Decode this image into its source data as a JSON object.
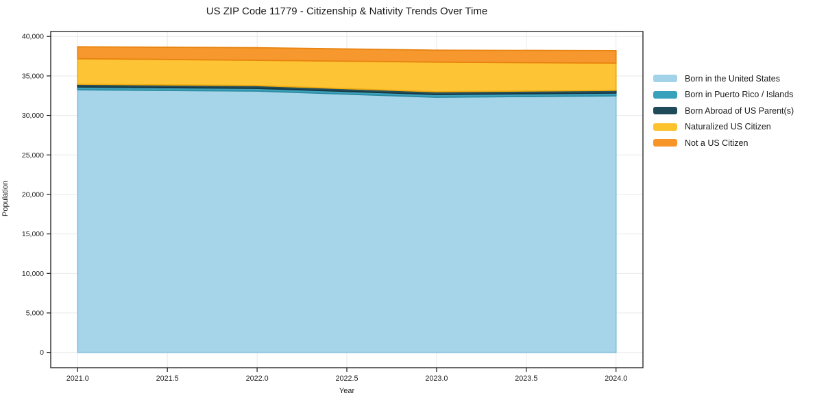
{
  "title": "US ZIP Code 11779 - Citizenship & Nativity Trends Over Time",
  "chart_data": {
    "type": "area",
    "stacked": true,
    "title": "US ZIP Code 11779 - Citizenship & Nativity Trends Over Time",
    "xlabel": "Year",
    "ylabel": "Population",
    "x": [
      2021,
      2022,
      2023,
      2024
    ],
    "series": [
      {
        "name": "Born in the United States",
        "color": "#a3d3e8",
        "edge_color": "#8ac2de",
        "values": [
          33250,
          33080,
          32300,
          32480
        ]
      },
      {
        "name": "Born in Puerto Rico / Islands",
        "color": "#38a1bb",
        "edge_color": "#2e8ba2",
        "values": [
          350,
          350,
          350,
          350
        ]
      },
      {
        "name": "Born Abroad of US Parent(s)",
        "color": "#1f4a59",
        "edge_color": "#163843",
        "values": [
          350,
          350,
          350,
          350
        ]
      },
      {
        "name": "Naturalized US Citizen",
        "color": "#fdc32f",
        "edge_color": "#f0ad10",
        "values": [
          3230,
          3200,
          3750,
          3440
        ]
      },
      {
        "name": "Not a US Citizen",
        "color": "#f79528",
        "edge_color": "#e8830f",
        "values": [
          1510,
          1590,
          1510,
          1590
        ]
      }
    ],
    "xlim": [
      2020.85,
      2024.15
    ],
    "ylim": [
      -1934,
      40624
    ],
    "xticks": [
      2021.0,
      2021.5,
      2022.0,
      2022.5,
      2023.0,
      2023.5,
      2024.0
    ],
    "xtick_labels": [
      "2021.0",
      "2021.5",
      "2022.0",
      "2022.5",
      "2023.0",
      "2023.5",
      "2024.0"
    ],
    "yticks": [
      0,
      5000,
      10000,
      15000,
      20000,
      25000,
      30000,
      35000,
      40000
    ],
    "ytick_labels": [
      "0",
      "5,000",
      "10,000",
      "15,000",
      "20,000",
      "25,000",
      "30,000",
      "35,000",
      "40,000"
    ],
    "grid": true,
    "legend_position": "right",
    "background": "#ffffff",
    "grid_color": "#e9e9e9",
    "spine_color": "#1a1a1a",
    "tick_color": "#1a1a1a",
    "text_color": "#1a1a1a"
  }
}
